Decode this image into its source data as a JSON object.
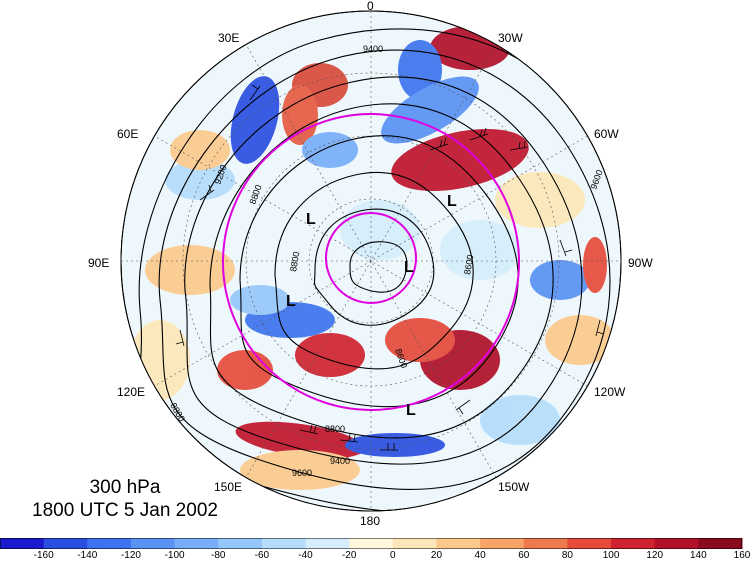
{
  "map": {
    "level": "300 hPa",
    "valid_time": "1800 UTC 5 Jan 2002",
    "longitude_labels": [
      {
        "id": "lon-0",
        "text": "0"
      },
      {
        "id": "lon-30w",
        "text": "30W"
      },
      {
        "id": "lon-60w",
        "text": "60W"
      },
      {
        "id": "lon-90w",
        "text": "90W"
      },
      {
        "id": "lon-120w",
        "text": "120W"
      },
      {
        "id": "lon-150w",
        "text": "150W"
      },
      {
        "id": "lon-180",
        "text": "180"
      },
      {
        "id": "lon-150e",
        "text": "150E"
      },
      {
        "id": "lon-120e",
        "text": "120E"
      },
      {
        "id": "lon-90e",
        "text": "90E"
      },
      {
        "id": "lon-60e",
        "text": "60E"
      },
      {
        "id": "lon-30e",
        "text": "30E"
      }
    ],
    "contour_labels": [
      "9400",
      "9200",
      "8800",
      "8800",
      "8600",
      "9600",
      "9400",
      "8800",
      "9600",
      "8800",
      "8600"
    ],
    "low_markers": [
      "L",
      "L",
      "L",
      "L",
      "L"
    ],
    "ring_color": "#e000e0",
    "contour_color": "#000000"
  },
  "colorbar": {
    "ticks": [
      "-160",
      "-140",
      "-120",
      "-100",
      "-80",
      "-60",
      "-40",
      "-20",
      "0",
      "20",
      "40",
      "60",
      "80",
      "100",
      "120",
      "140",
      "160"
    ],
    "colors": [
      "#1a1acc",
      "#2a4fe0",
      "#3d74ee",
      "#5a92f4",
      "#77aef7",
      "#95c6f9",
      "#b4dcfb",
      "#d6eefc",
      "#fff8dc",
      "#fde6b8",
      "#fbc98c",
      "#f7a468",
      "#f07a4f",
      "#e54a3a",
      "#cf2330",
      "#b0102a",
      "#8a0a20"
    ]
  }
}
